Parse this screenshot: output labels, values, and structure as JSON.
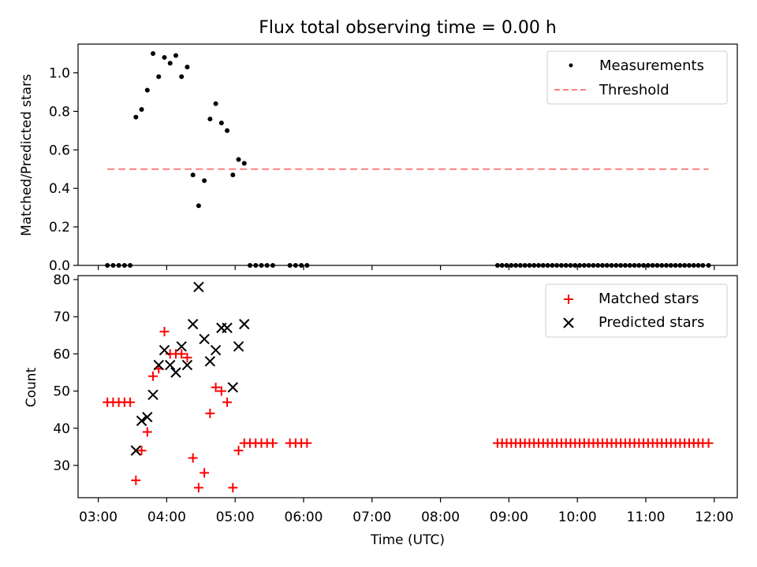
{
  "colors": {
    "measurement": "#000000",
    "threshold": "#ff7f7f",
    "matched": "#ff0000",
    "predicted": "#000000"
  },
  "chart_data": [
    {
      "type": "scatter",
      "title": "Flux total observing time = 0.00 h",
      "xlabel": "",
      "ylabel": "Matched/Predicted stars",
      "xlim": [
        "03:00",
        "12:00"
      ],
      "ylim": [
        0,
        1.15
      ],
      "yticks": [
        "0.0",
        "0.2",
        "0.4",
        "0.6",
        "0.8",
        "1.0"
      ],
      "legend": {
        "position": "top-right",
        "entries": [
          "Measurements",
          "Threshold"
        ]
      },
      "threshold": {
        "name": "Threshold",
        "value": 0.5,
        "x_start": "03:08",
        "x_end": "11:55"
      },
      "series": [
        {
          "name": "Measurements",
          "x": [
            "03:08",
            "03:13",
            "03:18",
            "03:23",
            "03:28",
            "03:33",
            "03:38",
            "03:43",
            "03:48",
            "03:53",
            "03:58",
            "04:03",
            "04:08",
            "04:13",
            "04:18",
            "04:23",
            "04:28",
            "04:33",
            "04:38",
            "04:43",
            "04:48",
            "04:53",
            "04:58",
            "05:03",
            "05:08",
            "05:13",
            "05:18",
            "05:23",
            "05:28",
            "05:33",
            "05:48",
            "05:53",
            "05:58",
            "06:03",
            "08:50",
            "08:54",
            "08:58",
            "09:02",
            "09:06",
            "09:10",
            "09:14",
            "09:18",
            "09:22",
            "09:26",
            "09:30",
            "09:34",
            "09:38",
            "09:42",
            "09:46",
            "09:50",
            "09:54",
            "09:58",
            "10:02",
            "10:06",
            "10:10",
            "10:14",
            "10:18",
            "10:22",
            "10:26",
            "10:30",
            "10:34",
            "10:38",
            "10:42",
            "10:46",
            "10:50",
            "10:54",
            "10:58",
            "11:02",
            "11:06",
            "11:10",
            "11:14",
            "11:18",
            "11:22",
            "11:26",
            "11:30",
            "11:34",
            "11:38",
            "11:42",
            "11:46",
            "11:50",
            "11:55"
          ],
          "y": [
            0,
            0,
            0,
            0,
            0,
            0.77,
            0.81,
            0.91,
            1.1,
            0.98,
            1.08,
            1.05,
            1.09,
            0.98,
            1.03,
            0.47,
            0.31,
            0.44,
            0.76,
            0.84,
            0.74,
            0.7,
            0.47,
            0.55,
            0.53,
            0,
            0,
            0,
            0,
            0,
            0,
            0,
            0,
            0,
            0,
            0,
            0,
            0,
            0,
            0,
            0,
            0,
            0,
            0,
            0,
            0,
            0,
            0,
            0,
            0,
            0,
            0,
            0,
            0,
            0,
            0,
            0,
            0,
            0,
            0,
            0,
            0,
            0,
            0,
            0,
            0,
            0,
            0,
            0,
            0,
            0,
            0,
            0,
            0,
            0,
            0,
            0,
            0,
            0,
            0,
            0
          ]
        }
      ]
    },
    {
      "type": "scatter",
      "title": "",
      "xlabel": "Time (UTC)",
      "ylabel": "Count",
      "xlim": [
        "03:00",
        "12:00"
      ],
      "ylim": [
        21,
        81
      ],
      "xticks": [
        "03:00",
        "04:00",
        "05:00",
        "06:00",
        "07:00",
        "08:00",
        "09:00",
        "10:00",
        "11:00",
        "12:00"
      ],
      "yticks": [
        "30",
        "40",
        "50",
        "60",
        "70",
        "80"
      ],
      "legend": {
        "position": "top-right",
        "entries": [
          "Matched stars",
          "Predicted stars"
        ]
      },
      "series": [
        {
          "name": "Matched stars",
          "x": [
            "03:08",
            "03:13",
            "03:18",
            "03:23",
            "03:28",
            "03:33",
            "03:38",
            "03:43",
            "03:48",
            "03:53",
            "03:58",
            "04:03",
            "04:08",
            "04:13",
            "04:18",
            "04:23",
            "04:28",
            "04:33",
            "04:38",
            "04:43",
            "04:48",
            "04:53",
            "04:58",
            "05:03",
            "05:08",
            "05:13",
            "05:18",
            "05:23",
            "05:28",
            "05:33",
            "05:48",
            "05:53",
            "05:58",
            "06:03",
            "08:50",
            "08:54",
            "08:58",
            "09:02",
            "09:06",
            "09:10",
            "09:14",
            "09:18",
            "09:22",
            "09:26",
            "09:30",
            "09:34",
            "09:38",
            "09:42",
            "09:46",
            "09:50",
            "09:54",
            "09:58",
            "10:02",
            "10:06",
            "10:10",
            "10:14",
            "10:18",
            "10:22",
            "10:26",
            "10:30",
            "10:34",
            "10:38",
            "10:42",
            "10:46",
            "10:50",
            "10:54",
            "10:58",
            "11:02",
            "11:06",
            "11:10",
            "11:14",
            "11:18",
            "11:22",
            "11:26",
            "11:30",
            "11:34",
            "11:38",
            "11:42",
            "11:46",
            "11:50",
            "11:55"
          ],
          "y": [
            47,
            47,
            47,
            47,
            47,
            26,
            34,
            39,
            54,
            56,
            66,
            60,
            60,
            60,
            59,
            32,
            24,
            28,
            44,
            51,
            50,
            47,
            24,
            34,
            36,
            36,
            36,
            36,
            36,
            36,
            36,
            36,
            36,
            36,
            36,
            36,
            36,
            36,
            36,
            36,
            36,
            36,
            36,
            36,
            36,
            36,
            36,
            36,
            36,
            36,
            36,
            36,
            36,
            36,
            36,
            36,
            36,
            36,
            36,
            36,
            36,
            36,
            36,
            36,
            36,
            36,
            36,
            36,
            36,
            36,
            36,
            36,
            36,
            36,
            36,
            36,
            36,
            36,
            36,
            36,
            36
          ]
        },
        {
          "name": "Predicted stars",
          "x": [
            "03:33",
            "03:38",
            "03:43",
            "03:48",
            "03:53",
            "03:58",
            "04:03",
            "04:08",
            "04:13",
            "04:18",
            "04:23",
            "04:28",
            "04:33",
            "04:38",
            "04:43",
            "04:48",
            "04:53",
            "04:58",
            "05:03",
            "05:08"
          ],
          "y": [
            34,
            42,
            43,
            49,
            57,
            61,
            57,
            55,
            62,
            57,
            68,
            78,
            64,
            58,
            61,
            67,
            67,
            51,
            62,
            68
          ]
        }
      ]
    }
  ]
}
